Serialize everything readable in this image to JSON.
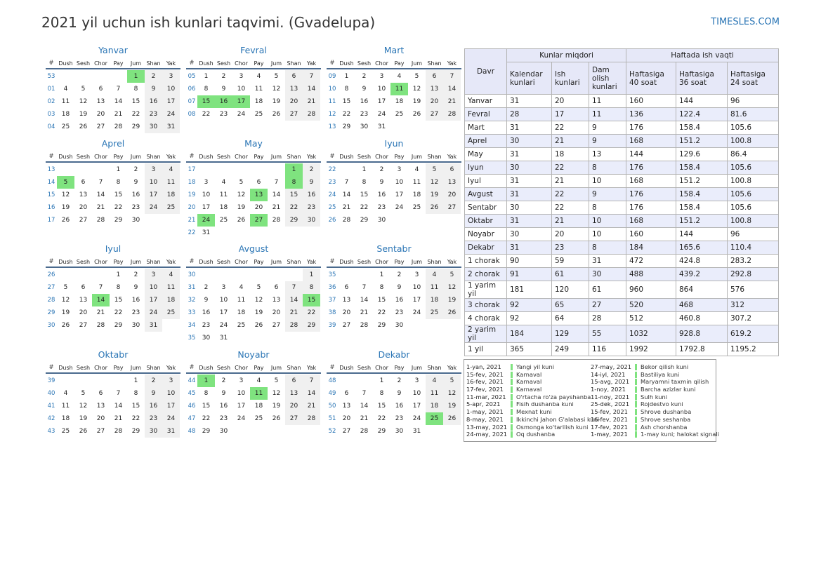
{
  "title": "2021 yil uchun ish kunlari taqvimi. (Gvadelupa)",
  "site": "TIMESLES.COM",
  "weekday_headers": [
    "#",
    "Dush",
    "Sesh",
    "Chor",
    "Pay",
    "Jum",
    "Shan",
    "Yak"
  ],
  "months": [
    {
      "name": "Yanvar",
      "start": 4,
      "days": 31,
      "weeks": [
        53,
        1,
        2,
        3,
        4
      ],
      "holidays": [
        1
      ]
    },
    {
      "name": "Fevral",
      "start": 0,
      "days": 28,
      "weeks": [
        5,
        6,
        7,
        8
      ],
      "holidays": [
        15,
        16,
        17
      ]
    },
    {
      "name": "Mart",
      "start": 0,
      "days": 31,
      "weeks": [
        9,
        10,
        11,
        12,
        13
      ],
      "holidays": [
        11
      ]
    },
    {
      "name": "Aprel",
      "start": 3,
      "days": 30,
      "weeks": [
        13,
        14,
        15,
        16,
        17
      ],
      "holidays": [
        5
      ]
    },
    {
      "name": "May",
      "start": 5,
      "days": 31,
      "weeks": [
        17,
        18,
        19,
        20,
        21,
        22
      ],
      "holidays": [
        1,
        8,
        13,
        24,
        27
      ]
    },
    {
      "name": "Iyun",
      "start": 1,
      "days": 30,
      "weeks": [
        22,
        23,
        24,
        25,
        26
      ],
      "holidays": []
    },
    {
      "name": "Iyul",
      "start": 3,
      "days": 31,
      "weeks": [
        26,
        27,
        28,
        29,
        30
      ],
      "holidays": [
        14
      ]
    },
    {
      "name": "Avgust",
      "start": 6,
      "days": 31,
      "weeks": [
        30,
        31,
        32,
        33,
        34,
        35
      ],
      "holidays": [
        15
      ]
    },
    {
      "name": "Sentabr",
      "start": 2,
      "days": 30,
      "weeks": [
        35,
        36,
        37,
        38,
        39
      ],
      "holidays": []
    },
    {
      "name": "Oktabr",
      "start": 4,
      "days": 31,
      "weeks": [
        39,
        40,
        41,
        42,
        43
      ],
      "holidays": []
    },
    {
      "name": "Noyabr",
      "start": 0,
      "days": 30,
      "weeks": [
        44,
        45,
        46,
        47,
        48
      ],
      "holidays": [
        1,
        11
      ]
    },
    {
      "name": "Dekabr",
      "start": 2,
      "days": 31,
      "weeks": [
        48,
        49,
        50,
        51,
        52
      ],
      "holidays": [
        25
      ]
    }
  ],
  "stats_table": {
    "h_period": "Davr",
    "h_group1": "Kunlar miqdori",
    "h_group2": "Haftada ish vaqti",
    "h_cols": [
      "Kalendar kunlari",
      "Ish kunlari",
      "Dam olish kunlari",
      "Haftasiga 40 soat",
      "Haftasiga 36 soat",
      "Haftasiga 24 soat"
    ],
    "rows": [
      [
        "Yanvar",
        "31",
        "20",
        "11",
        "160",
        "144",
        "96"
      ],
      [
        "Fevral",
        "28",
        "17",
        "11",
        "136",
        "122.4",
        "81.6"
      ],
      [
        "Mart",
        "31",
        "22",
        "9",
        "176",
        "158.4",
        "105.6"
      ],
      [
        "Aprel",
        "30",
        "21",
        "9",
        "168",
        "151.2",
        "100.8"
      ],
      [
        "May",
        "31",
        "18",
        "13",
        "144",
        "129.6",
        "86.4"
      ],
      [
        "Iyun",
        "30",
        "22",
        "8",
        "176",
        "158.4",
        "105.6"
      ],
      [
        "Iyul",
        "31",
        "21",
        "10",
        "168",
        "151.2",
        "100.8"
      ],
      [
        "Avgust",
        "31",
        "22",
        "9",
        "176",
        "158.4",
        "105.6"
      ],
      [
        "Sentabr",
        "30",
        "22",
        "8",
        "176",
        "158.4",
        "105.6"
      ],
      [
        "Oktabr",
        "31",
        "21",
        "10",
        "168",
        "151.2",
        "100.8"
      ],
      [
        "Noyabr",
        "30",
        "20",
        "10",
        "160",
        "144",
        "96"
      ],
      [
        "Dekabr",
        "31",
        "23",
        "8",
        "184",
        "165.6",
        "110.4"
      ],
      [
        "1 chorak",
        "90",
        "59",
        "31",
        "472",
        "424.8",
        "283.2"
      ],
      [
        "2 chorak",
        "91",
        "61",
        "30",
        "488",
        "439.2",
        "292.8"
      ],
      [
        "1 yarim yil",
        "181",
        "120",
        "61",
        "960",
        "864",
        "576"
      ],
      [
        "3 chorak",
        "92",
        "65",
        "27",
        "520",
        "468",
        "312"
      ],
      [
        "4 chorak",
        "92",
        "64",
        "28",
        "512",
        "460.8",
        "307.2"
      ],
      [
        "2 yarim yil",
        "184",
        "129",
        "55",
        "1032",
        "928.8",
        "619.2"
      ],
      [
        "1 yil",
        "365",
        "249",
        "116",
        "1992",
        "1792.8",
        "1195.2"
      ]
    ]
  },
  "legend_left": [
    [
      "1-yan, 2021",
      "Yangi yil kuni"
    ],
    [
      "15-fev, 2021",
      "Karnaval"
    ],
    [
      "16-fev, 2021",
      "Karnaval"
    ],
    [
      "17-fev, 2021",
      "Karnaval"
    ],
    [
      "11-mar, 2021",
      "O'rtacha ro'za payshanba"
    ],
    [
      "5-apr, 2021",
      "Fisih dushanba kuni"
    ],
    [
      "1-may, 2021",
      "Mexnat kuni"
    ],
    [
      "8-may, 2021",
      "Ikkinchi Jahon G'alabasi kuni"
    ],
    [
      "13-may, 2021",
      "Osmonga ko'tarilish kuni"
    ],
    [
      "24-may, 2021",
      "Oq dushanba"
    ]
  ],
  "legend_right": [
    [
      "27-may, 2021",
      "Bekor qilish kuni"
    ],
    [
      "14-iyl, 2021",
      "Bastiliya kuni"
    ],
    [
      "15-avg, 2021",
      "Maryamni taxmin qilish"
    ],
    [
      "1-noy, 2021",
      "Barcha azizlar kuni"
    ],
    [
      "11-noy, 2021",
      "Sulh kuni"
    ],
    [
      "25-dek, 2021",
      "Rojdestvo kuni"
    ],
    [
      "15-fev, 2021",
      "Shrove dushanba"
    ],
    [
      "16-fev, 2021",
      "Shrove seshanba"
    ],
    [
      "17-fev, 2021",
      "Ash chorshanba"
    ],
    [
      "1-may, 2021",
      "1-may kuni; halokat signali"
    ]
  ]
}
